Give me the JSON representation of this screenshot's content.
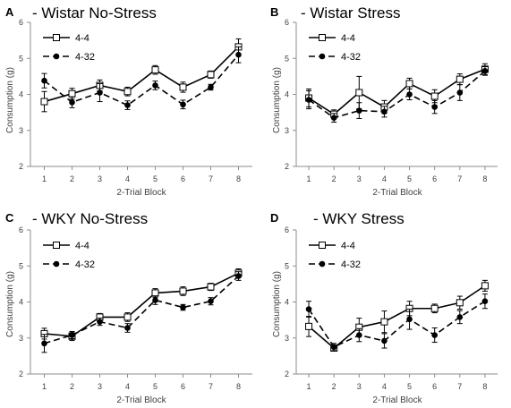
{
  "chart_data": [
    {
      "panel_letter": "A",
      "type": "line",
      "title": "- Wistar No-Stress",
      "xlabel": "2-Trial Block",
      "ylabel": "Consumption (g)",
      "x": [
        1,
        2,
        3,
        4,
        5,
        6,
        7,
        8
      ],
      "xticks": [
        "1",
        "2",
        "3",
        "4",
        "5",
        "6",
        "7",
        "8"
      ],
      "ylim": [
        2,
        6
      ],
      "yticks": [
        "2",
        "3",
        "4",
        "5",
        "6"
      ],
      "legend_position": "top-left",
      "series": [
        {
          "name": "4-4",
          "marker": "open-square",
          "line": "solid",
          "values": [
            3.8,
            4.02,
            4.25,
            4.08,
            4.68,
            4.2,
            4.55,
            5.32
          ],
          "errors": [
            0.28,
            0.15,
            0.15,
            0.12,
            0.12,
            0.14,
            0.1,
            0.22
          ]
        },
        {
          "name": "4-32",
          "marker": "filled-circle",
          "line": "dashed",
          "values": [
            4.38,
            3.78,
            4.05,
            3.7,
            4.25,
            3.72,
            4.2,
            5.1
          ],
          "errors": [
            0.2,
            0.15,
            0.25,
            0.12,
            0.12,
            0.12,
            0.08,
            0.22
          ]
        }
      ]
    },
    {
      "panel_letter": "B",
      "type": "line",
      "title": "- Wistar Stress",
      "xlabel": "2-Trial Block",
      "ylabel": "Consumption (g)",
      "x": [
        1,
        2,
        3,
        4,
        5,
        6,
        7,
        8
      ],
      "xticks": [
        "1",
        "2",
        "3",
        "4",
        "5",
        "6",
        "7",
        "8"
      ],
      "ylim": [
        2,
        6
      ],
      "yticks": [
        "2",
        "3",
        "4",
        "5",
        "6"
      ],
      "legend_position": "top-left",
      "series": [
        {
          "name": "4-4",
          "marker": "open-square",
          "line": "solid",
          "values": [
            3.9,
            3.45,
            4.05,
            3.65,
            4.3,
            3.95,
            4.42,
            4.7
          ],
          "errors": [
            0.25,
            0.12,
            0.45,
            0.18,
            0.15,
            0.18,
            0.15,
            0.15
          ]
        },
        {
          "name": "4-32",
          "marker": "filled-circle",
          "line": "dashed",
          "values": [
            3.85,
            3.35,
            3.55,
            3.52,
            4.0,
            3.65,
            4.05,
            4.65
          ],
          "errors": [
            0.25,
            0.12,
            0.22,
            0.15,
            0.15,
            0.18,
            0.22,
            0.12
          ]
        }
      ]
    },
    {
      "panel_letter": "C",
      "type": "line",
      "title": "- WKY No-Stress",
      "xlabel": "2-Trial Block",
      "ylabel": "Consumption (g)",
      "x": [
        1,
        2,
        3,
        4,
        5,
        6,
        7,
        8
      ],
      "xticks": [
        "1",
        "2",
        "3",
        "4",
        "5",
        "6",
        "7",
        "8"
      ],
      "ylim": [
        2,
        6
      ],
      "yticks": [
        "2",
        "3",
        "4",
        "5",
        "6"
      ],
      "legend_position": "top-left",
      "series": [
        {
          "name": "4-4",
          "marker": "open-square",
          "line": "solid",
          "values": [
            3.12,
            3.05,
            3.58,
            3.58,
            4.25,
            4.3,
            4.42,
            4.8
          ],
          "errors": [
            0.15,
            0.12,
            0.1,
            0.12,
            0.12,
            0.12,
            0.1,
            0.12
          ]
        },
        {
          "name": "4-32",
          "marker": "filled-circle",
          "line": "dashed",
          "values": [
            2.85,
            3.08,
            3.45,
            3.28,
            4.05,
            3.85,
            4.02,
            4.72
          ],
          "errors": [
            0.25,
            0.1,
            0.1,
            0.12,
            0.12,
            0.08,
            0.1,
            0.12
          ]
        }
      ]
    },
    {
      "panel_letter": "D",
      "type": "line",
      "title": "- WKY Stress",
      "xlabel": "2-Trial Block",
      "ylabel": "Consumption (g)",
      "x": [
        1,
        2,
        3,
        4,
        5,
        6,
        7,
        8
      ],
      "xticks": [
        "1",
        "2",
        "3",
        "4",
        "5",
        "6",
        "7",
        "8"
      ],
      "ylim": [
        2,
        6
      ],
      "yticks": [
        "2",
        "3",
        "4",
        "5",
        "6"
      ],
      "legend_position": "top-left",
      "series": [
        {
          "name": "4-4",
          "marker": "open-square",
          "line": "solid",
          "values": [
            3.32,
            2.72,
            3.3,
            3.45,
            3.82,
            3.82,
            3.98,
            4.45
          ],
          "errors": [
            0.28,
            0.08,
            0.25,
            0.3,
            0.2,
            0.12,
            0.18,
            0.15
          ]
        },
        {
          "name": "4-32",
          "marker": "filled-circle",
          "line": "dashed",
          "values": [
            3.8,
            2.75,
            3.08,
            2.92,
            3.52,
            3.08,
            3.58,
            4.02
          ],
          "errors": [
            0.22,
            0.1,
            0.18,
            0.2,
            0.28,
            0.2,
            0.18,
            0.2
          ]
        }
      ]
    }
  ],
  "colors": {
    "line": "#000000",
    "axis": "#8c8c8c",
    "grid_text": "#404040",
    "background": "#ffffff"
  }
}
